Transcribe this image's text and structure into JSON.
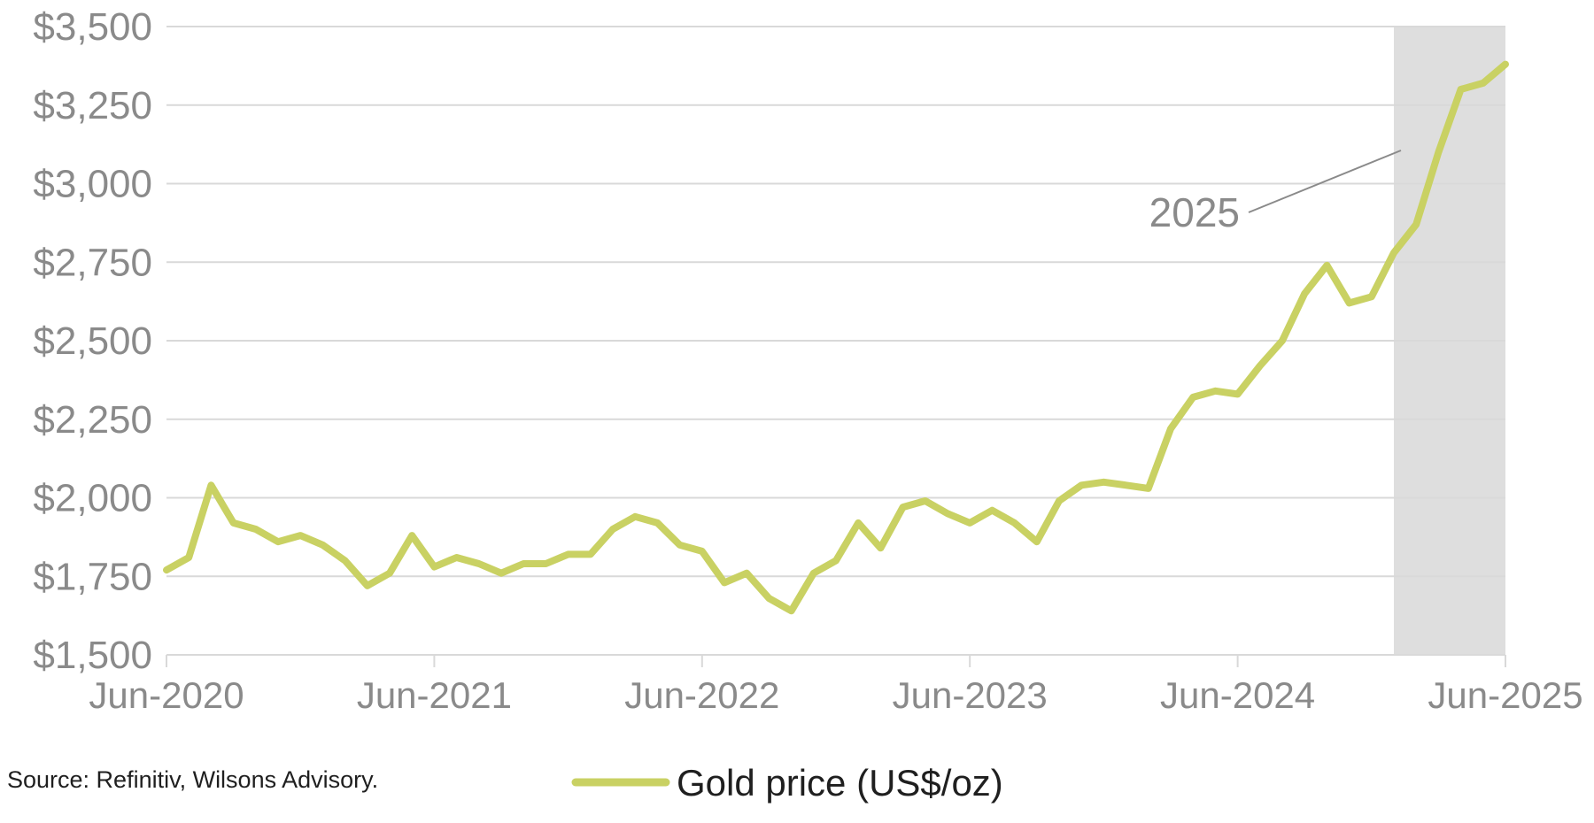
{
  "chart_data": {
    "type": "line",
    "y_tick_labels": [
      "$1,500",
      "$1,750",
      "$2,000",
      "$2,250",
      "$2,500",
      "$2,750",
      "$3,000",
      "$3,250",
      "$3,500"
    ],
    "y_ticks": [
      1500,
      1750,
      2000,
      2250,
      2500,
      2750,
      3000,
      3250,
      3500
    ],
    "x_tick_labels": [
      "Jun-2020",
      "Jun-2021",
      "Jun-2022",
      "Jun-2023",
      "Jun-2024",
      "Jun-2025"
    ],
    "x_ticks": [
      "2020-06",
      "2021-06",
      "2022-06",
      "2023-06",
      "2024-06",
      "2025-06"
    ],
    "ylim": [
      1500,
      3500
    ],
    "xlim": [
      "2020-06",
      "2025-06"
    ],
    "grid": "horizontal",
    "series": [
      {
        "name": "Gold price (US$/oz)",
        "color": "#c9d163",
        "x": [
          "2020-06",
          "2020-07",
          "2020-08",
          "2020-09",
          "2020-10",
          "2020-11",
          "2020-12",
          "2021-01",
          "2021-02",
          "2021-03",
          "2021-04",
          "2021-05",
          "2021-06",
          "2021-07",
          "2021-08",
          "2021-09",
          "2021-10",
          "2021-11",
          "2021-12",
          "2022-01",
          "2022-02",
          "2022-03",
          "2022-04",
          "2022-05",
          "2022-06",
          "2022-07",
          "2022-08",
          "2022-09",
          "2022-10",
          "2022-11",
          "2022-12",
          "2023-01",
          "2023-02",
          "2023-03",
          "2023-04",
          "2023-05",
          "2023-06",
          "2023-07",
          "2023-08",
          "2023-09",
          "2023-10",
          "2023-11",
          "2023-12",
          "2024-01",
          "2024-02",
          "2024-03",
          "2024-04",
          "2024-05",
          "2024-06",
          "2024-07",
          "2024-08",
          "2024-09",
          "2024-10",
          "2024-11",
          "2024-12",
          "2025-01",
          "2025-02",
          "2025-03",
          "2025-04",
          "2025-05",
          "2025-06"
        ],
        "values": [
          1770,
          1810,
          2040,
          1920,
          1900,
          1860,
          1880,
          1850,
          1800,
          1720,
          1760,
          1880,
          1780,
          1810,
          1790,
          1760,
          1790,
          1790,
          1820,
          1820,
          1900,
          1940,
          1920,
          1850,
          1830,
          1730,
          1760,
          1680,
          1640,
          1760,
          1800,
          1920,
          1840,
          1970,
          1990,
          1950,
          1920,
          1960,
          1920,
          1860,
          1990,
          2040,
          2050,
          2040,
          2030,
          2220,
          2320,
          2340,
          2330,
          2420,
          2500,
          2650,
          2740,
          2620,
          2640,
          2780,
          2870,
          3100,
          3300,
          3320,
          3380
        ]
      }
    ],
    "annotations": [
      {
        "text": "2025",
        "shaded_from": "2025-01",
        "shaded_to": "2025-06"
      }
    ],
    "shade_color": "#dedede",
    "grid_color": "#d9d9d9",
    "legend": {
      "position": "bottom-center"
    }
  },
  "source_text": "Source: Refinitiv, Wilsons Advisory."
}
